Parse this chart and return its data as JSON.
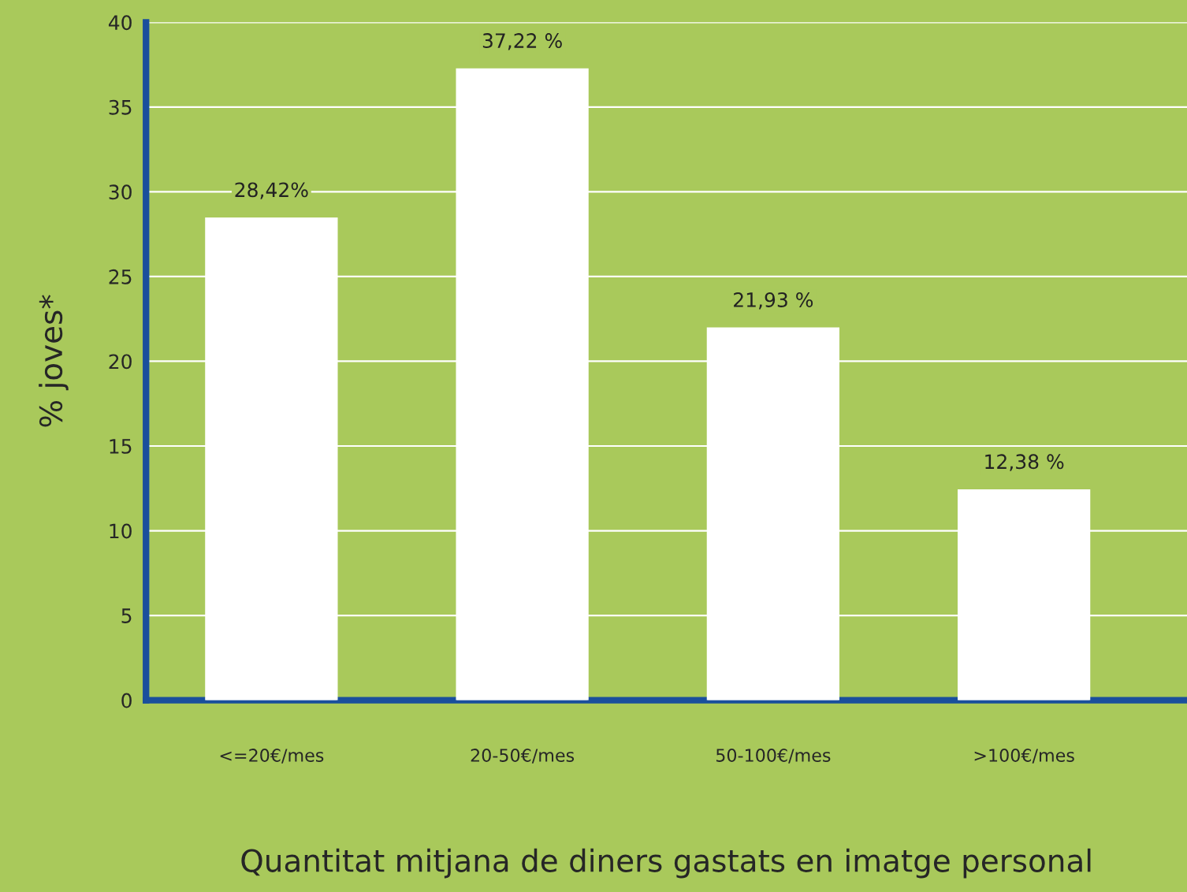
{
  "chart_data": {
    "type": "bar",
    "categories": [
      "<=20€/mes",
      "20-50€/mes",
      "50-100€/mes",
      ">100€/mes"
    ],
    "values": [
      28.42,
      37.22,
      21.93,
      12.38
    ],
    "value_labels": [
      "28,42%",
      "37,22 %",
      "21,93 %",
      "12,38 %"
    ],
    "color": "#ffffff",
    "xlabel": "Quantitat mitjana de diners gastats en imatge personal",
    "ylabel": "% joves*",
    "ylim": [
      0,
      40
    ],
    "yticks": [
      0,
      5,
      10,
      15,
      20,
      25,
      30,
      35,
      40
    ],
    "grid": "y"
  }
}
